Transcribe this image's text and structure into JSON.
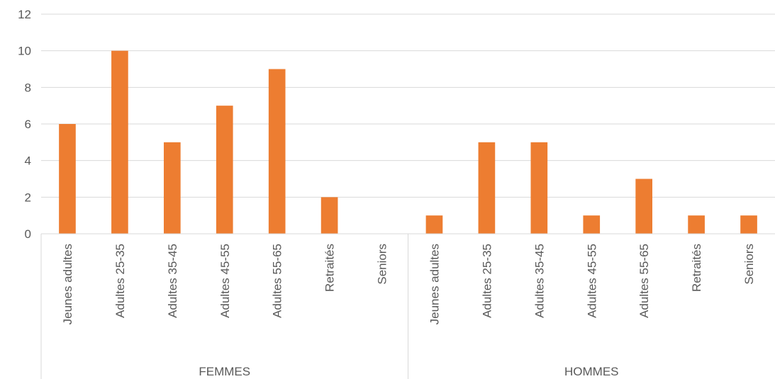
{
  "chart_data": {
    "type": "bar",
    "title": "",
    "xlabel": "",
    "ylabel": "",
    "ylim": [
      0,
      12
    ],
    "yticks": [
      0,
      2,
      4,
      6,
      8,
      10,
      12
    ],
    "grid": true,
    "legend": "none",
    "bar_color": "#ED7D31",
    "groups": [
      {
        "name": "FEMMES",
        "categories": [
          "Jeunes adultes",
          "Adultes 25-35",
          "Adultes 35-45",
          "Adultes 45-55",
          "Adultes 55-65",
          "Retraités",
          "Seniors"
        ],
        "values": [
          6,
          10,
          5,
          7,
          9,
          2,
          0
        ]
      },
      {
        "name": "HOMMES",
        "categories": [
          "Jeunes adultes",
          "Adultes 25-35",
          "Adultes 35-45",
          "Adultes 45-55",
          "Adultes 55-65",
          "Retraités",
          "Seniors"
        ],
        "values": [
          1,
          5,
          5,
          1,
          3,
          1,
          1
        ]
      }
    ]
  }
}
